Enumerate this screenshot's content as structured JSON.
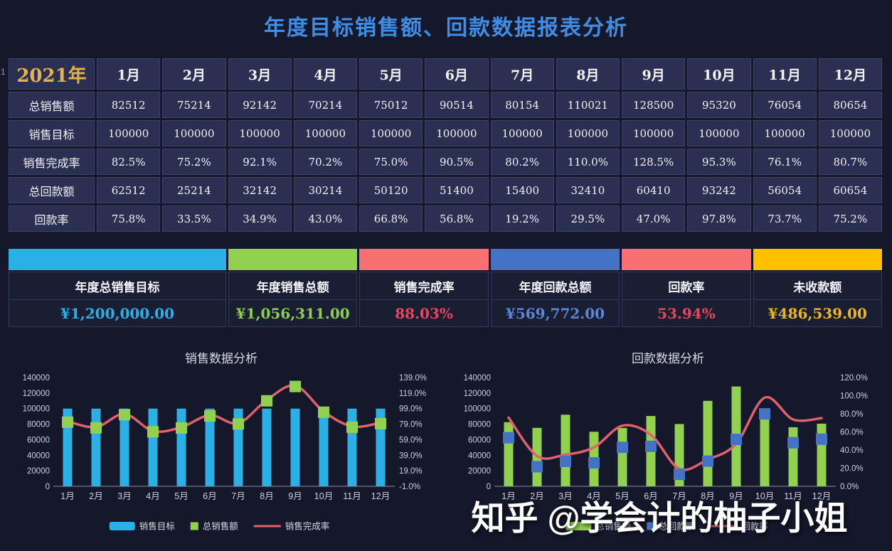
{
  "page": {
    "title": "年度目标销售额、回款数据报表分析",
    "row_marker": "1"
  },
  "table": {
    "year_label": "2021年",
    "months": [
      "1月",
      "2月",
      "3月",
      "4月",
      "5月",
      "6月",
      "7月",
      "8月",
      "9月",
      "10月",
      "11月",
      "12月"
    ],
    "rows": [
      {
        "label": "总销售额",
        "values": [
          "82512",
          "75214",
          "92142",
          "70214",
          "75012",
          "90514",
          "80154",
          "110021",
          "128500",
          "95320",
          "76054",
          "80654"
        ]
      },
      {
        "label": "销售目标",
        "values": [
          "100000",
          "100000",
          "100000",
          "100000",
          "100000",
          "100000",
          "100000",
          "100000",
          "100000",
          "100000",
          "100000",
          "100000"
        ]
      },
      {
        "label": "销售完成率",
        "values": [
          "82.5%",
          "75.2%",
          "92.1%",
          "70.2%",
          "75.0%",
          "90.5%",
          "80.2%",
          "110.0%",
          "128.5%",
          "95.3%",
          "76.1%",
          "80.7%"
        ]
      },
      {
        "label": "总回款额",
        "values": [
          "62512",
          "25214",
          "32142",
          "30214",
          "50120",
          "51400",
          "15400",
          "32410",
          "60410",
          "93242",
          "56054",
          "60654"
        ]
      },
      {
        "label": "回款率",
        "values": [
          "75.8%",
          "33.5%",
          "34.9%",
          "43.0%",
          "66.8%",
          "56.8%",
          "19.2%",
          "29.5%",
          "47.0%",
          "97.8%",
          "73.7%",
          "75.2%"
        ]
      }
    ]
  },
  "summary": {
    "cards": [
      {
        "label": "年度总销售目标",
        "value": "¥1,200,000.00",
        "color": "#29b1e6",
        "value_color": "#2cb0e8",
        "wide": true
      },
      {
        "label": "年度销售总额",
        "value": "¥1,056,311.00",
        "color": "#92d050",
        "value_color": "#8fcf4e"
      },
      {
        "label": "销售完成率",
        "value": "88.03%",
        "color": "#f97070",
        "value_color": "#e8465c"
      },
      {
        "label": "年度回款总额",
        "value": "¥569,772.00",
        "color": "#4472c4",
        "value_color": "#5c86d6"
      },
      {
        "label": "回款率",
        "value": "53.94%",
        "color": "#f97070",
        "value_color": "#e8465c"
      },
      {
        "label": "未收款额",
        "value": "¥486,539.00",
        "color": "#ffc000",
        "value_color": "#edb520"
      }
    ]
  },
  "chart_data": [
    {
      "type": "bar",
      "title": "销售数据分析",
      "categories": [
        "1月",
        "2月",
        "3月",
        "4月",
        "5月",
        "6月",
        "7月",
        "8月",
        "9月",
        "10月",
        "11月",
        "12月"
      ],
      "series": [
        {
          "name": "销售目标",
          "type": "bar",
          "axis": "left",
          "color": "#29b1e6",
          "values": [
            100000,
            100000,
            100000,
            100000,
            100000,
            100000,
            100000,
            100000,
            100000,
            100000,
            100000,
            100000
          ]
        },
        {
          "name": "总销售额",
          "type": "square-marker",
          "axis": "left",
          "color": "#92d050",
          "values": [
            82512,
            75214,
            92142,
            70214,
            75012,
            90514,
            80154,
            110021,
            128500,
            95320,
            76054,
            80654
          ]
        },
        {
          "name": "销售完成率",
          "type": "line",
          "axis": "right",
          "color": "#e0606c",
          "values": [
            82.5,
            75.2,
            92.1,
            70.2,
            75.0,
            90.5,
            80.2,
            110.0,
            128.5,
            95.3,
            76.1,
            80.7
          ]
        }
      ],
      "left_axis": {
        "min": 0,
        "max": 140000,
        "ticks": [
          "140000",
          "120000",
          "100000",
          "80000",
          "60000",
          "40000",
          "20000",
          "0"
        ]
      },
      "right_axis": {
        "min": -1,
        "max": 139,
        "ticks": [
          "139.0%",
          "119.0%",
          "99.0%",
          "79.0%",
          "59.0%",
          "39.0%",
          "19.0%",
          "-1.0%"
        ]
      },
      "grid": false,
      "legend_position": "bottom"
    },
    {
      "type": "bar",
      "title": "回款数据分析",
      "categories": [
        "1月",
        "2月",
        "3月",
        "4月",
        "5月",
        "6月",
        "7月",
        "8月",
        "9月",
        "10月",
        "11月",
        "12月"
      ],
      "series": [
        {
          "name": "总销售额",
          "type": "bar",
          "axis": "left",
          "color": "#92d050",
          "values": [
            82512,
            75214,
            92142,
            70214,
            75012,
            90514,
            80154,
            110021,
            128500,
            95320,
            76054,
            80654
          ]
        },
        {
          "name": "总回款额",
          "type": "square-marker",
          "axis": "left",
          "color": "#4472c4",
          "values": [
            62512,
            25214,
            32142,
            30214,
            50120,
            51400,
            15400,
            32410,
            60410,
            93242,
            56054,
            60654
          ]
        },
        {
          "name": "回款率",
          "type": "line",
          "axis": "right",
          "color": "#e0606c",
          "values": [
            75.8,
            33.5,
            34.9,
            43.0,
            66.8,
            56.8,
            19.2,
            29.5,
            47.0,
            97.8,
            73.7,
            75.2
          ]
        }
      ],
      "left_axis": {
        "min": 0,
        "max": 140000,
        "ticks": [
          "140000",
          "120000",
          "100000",
          "80000",
          "60000",
          "40000",
          "20000",
          "0"
        ]
      },
      "right_axis": {
        "min": 0,
        "max": 120,
        "ticks": [
          "120.0%",
          "100.0%",
          "80.0%",
          "60.0%",
          "40.0%",
          "20.0%",
          "0.0%"
        ]
      },
      "grid": false,
      "legend_position": "bottom"
    }
  ],
  "watermark": "知乎 @学会计的柚子小姐"
}
